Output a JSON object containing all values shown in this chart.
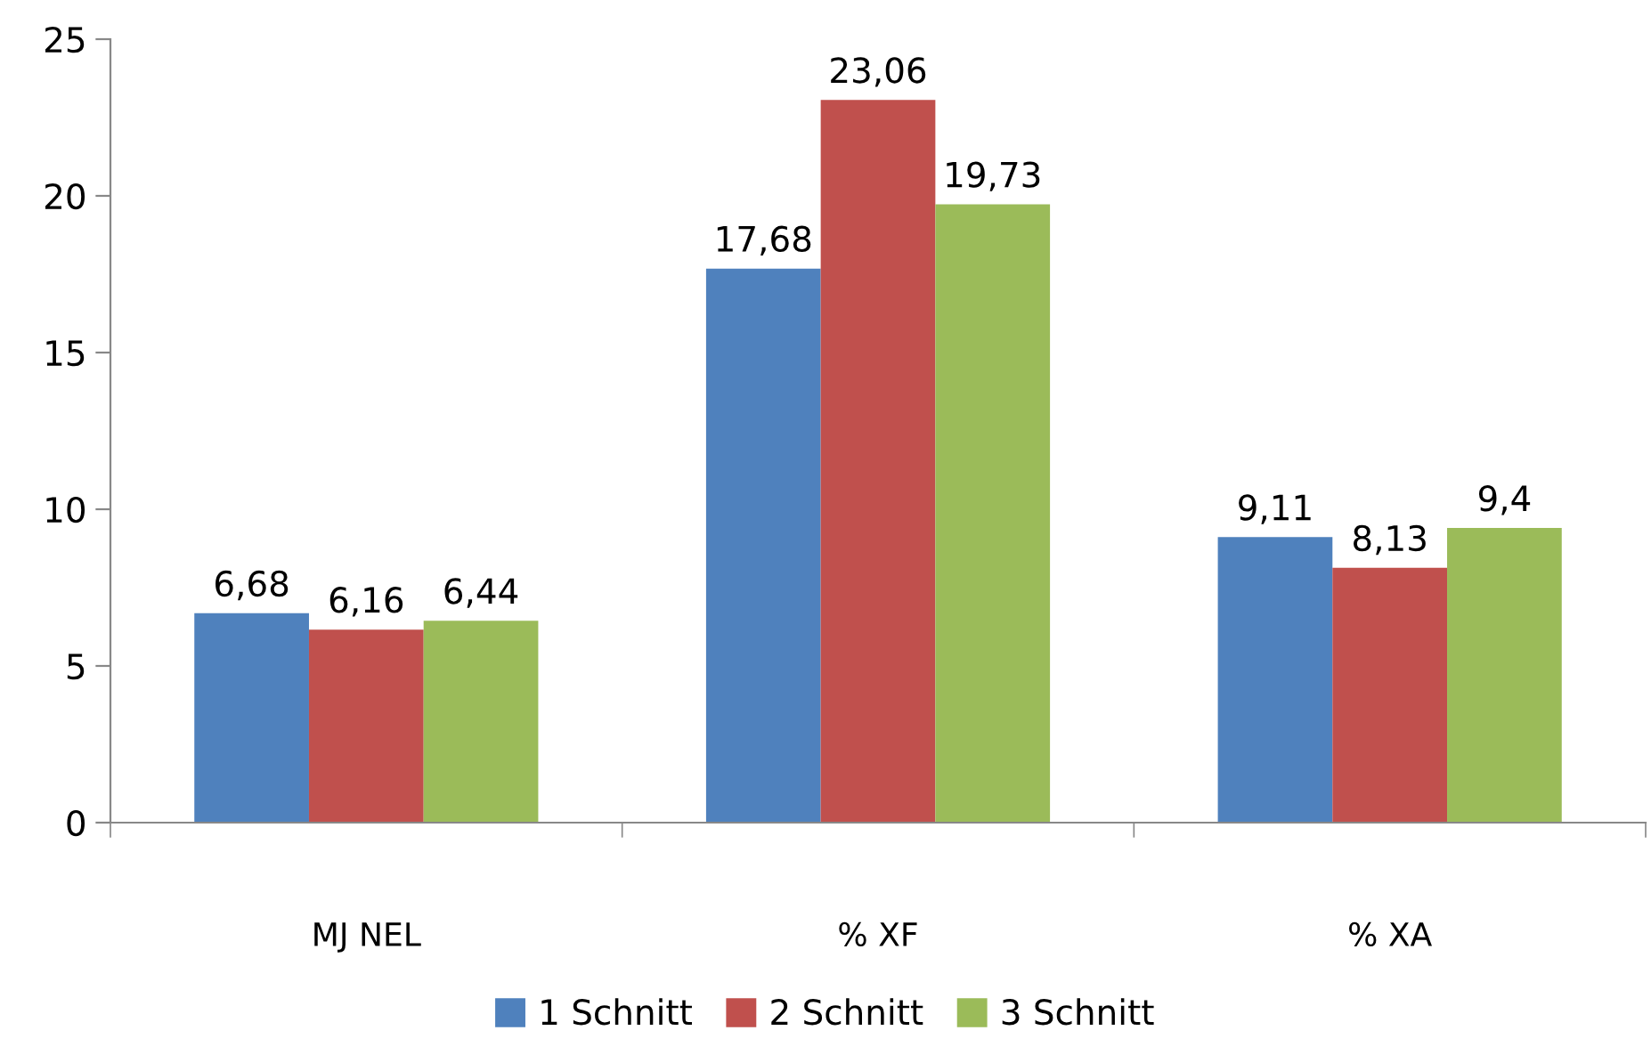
{
  "chart_data": {
    "type": "bar",
    "categories": [
      "MJ NEL",
      "% XF",
      "% XA"
    ],
    "series": [
      {
        "name": "1 Schnitt",
        "color": "#4f81bd",
        "values": [
          6.68,
          17.68,
          9.11
        ],
        "value_labels": [
          "6,68",
          "17,68",
          "9,11"
        ]
      },
      {
        "name": "2 Schnitt",
        "color": "#c0504d",
        "values": [
          6.16,
          23.06,
          8.13
        ],
        "value_labels": [
          "6,16",
          "23,06",
          "8,13"
        ]
      },
      {
        "name": "3 Schnitt",
        "color": "#9bbb59",
        "values": [
          6.44,
          19.73,
          9.4
        ],
        "value_labels": [
          "6,44",
          "19,73",
          "9,4"
        ]
      }
    ],
    "ylim": [
      0,
      25
    ],
    "yticks": [
      0,
      5,
      10,
      15,
      20,
      25
    ],
    "grid": false,
    "legend": "bottom"
  }
}
